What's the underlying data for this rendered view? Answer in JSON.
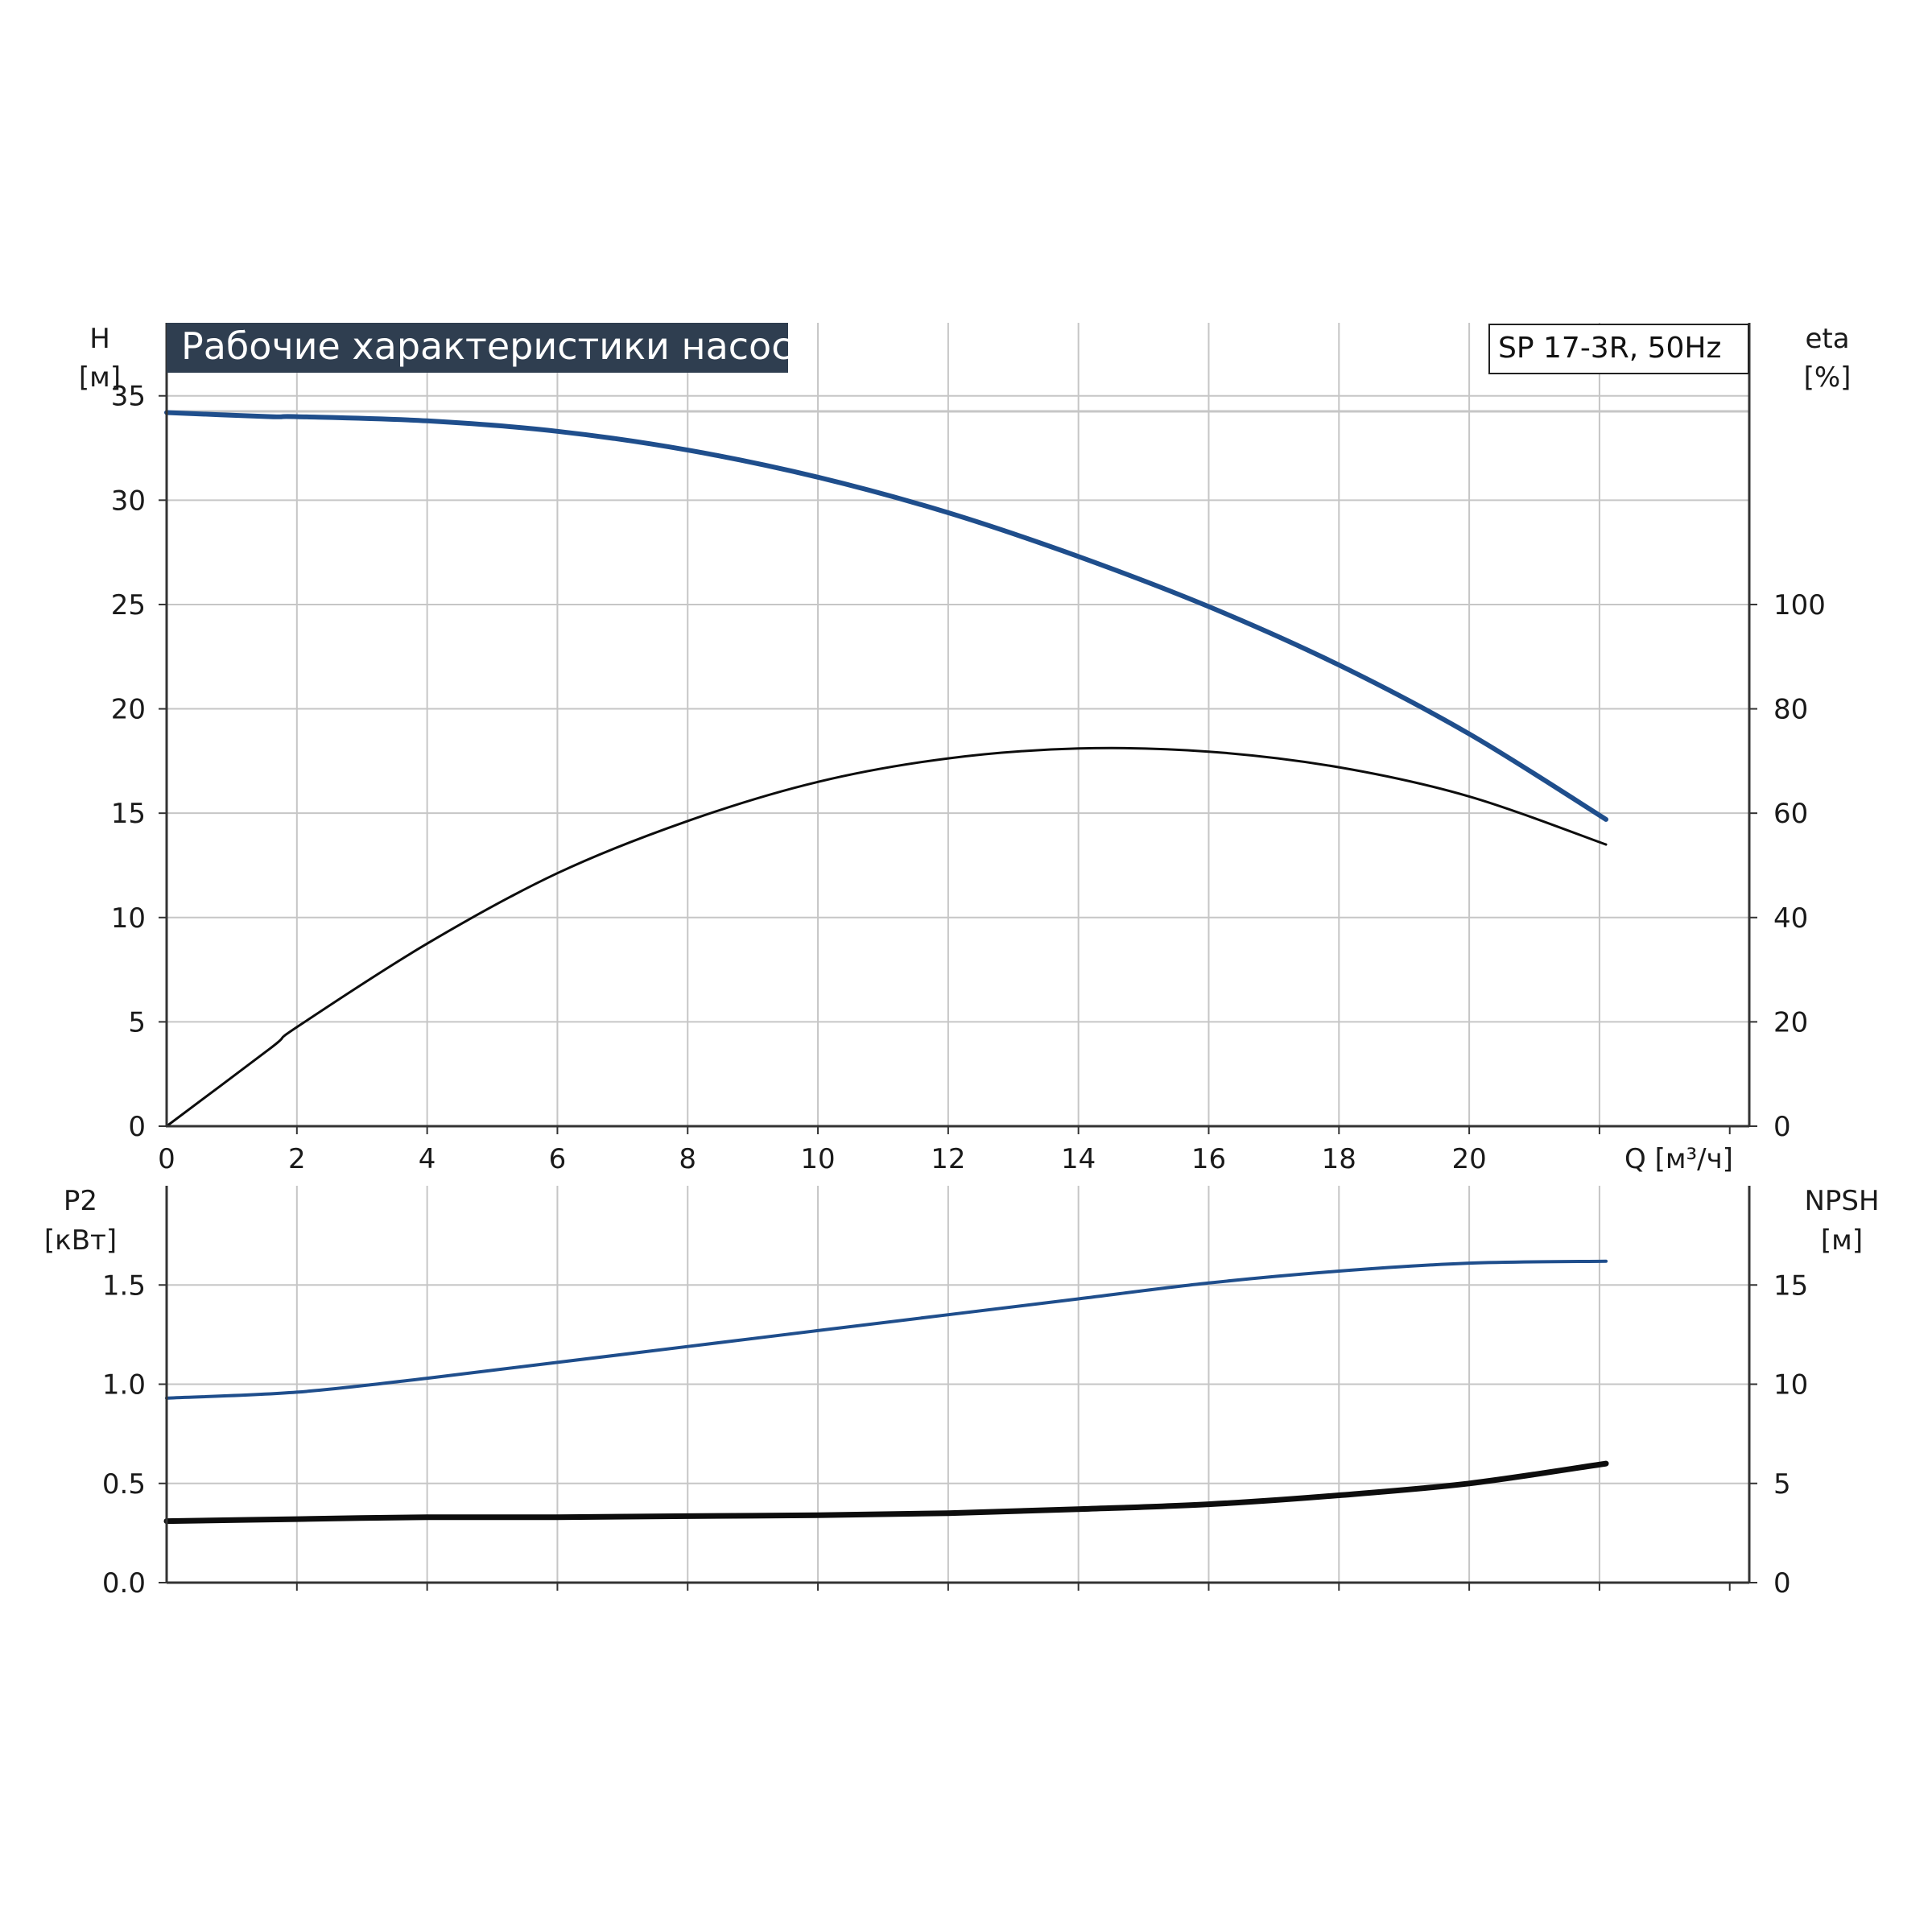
{
  "chart_title": "Рабочие характеристики насоса",
  "model_label": "SP 17-3R, 50Hz",
  "colors": {
    "title_bg": "#2f3e50",
    "blue": "#1f4e8c",
    "black": "#0d0d0d",
    "grid": "#c6c6c6",
    "frame": "#333333"
  },
  "chart_data": [
    {
      "type": "line",
      "panel": "top",
      "xlabel": "Q [м³/ч]",
      "xlim": [
        0,
        24.3
      ],
      "x_ticks": [
        0,
        2,
        4,
        6,
        8,
        10,
        12,
        14,
        16,
        18,
        20
      ],
      "left_axis": {
        "label_line1": "H",
        "label_line2": "[м]",
        "ylim": [
          0,
          38.5
        ],
        "ticks": [
          0,
          5,
          10,
          15,
          20,
          25,
          30,
          35
        ]
      },
      "right_axis": {
        "label_line1": "eta",
        "label_line2": "[%]",
        "ylim": [
          0,
          154
        ],
        "ticks": [
          0,
          20,
          40,
          60,
          80,
          100
        ]
      },
      "grid": true,
      "series": [
        {
          "axis": "left",
          "color": "#1f4e8c",
          "width": 6,
          "x": [
            0,
            1.6,
            2,
            4,
            6,
            8,
            10,
            12,
            14,
            16,
            18,
            20,
            22.1
          ],
          "y": [
            34.2,
            34.0,
            34.0,
            33.8,
            33.3,
            32.4,
            31.1,
            29.4,
            27.3,
            24.9,
            22.1,
            18.8,
            14.7
          ]
        },
        {
          "axis": "right",
          "color": "#0d0d0d",
          "width": 3,
          "x": [
            0,
            1.6,
            2,
            4,
            6,
            8,
            10,
            12,
            14,
            16,
            18,
            20,
            22.1
          ],
          "y": [
            0,
            15,
            19,
            35,
            48.5,
            58.5,
            66,
            70.5,
            72.4,
            71.8,
            68.8,
            63.2,
            54
          ]
        }
      ]
    },
    {
      "type": "line",
      "panel": "bottom",
      "xlim": [
        0,
        24.3
      ],
      "left_axis": {
        "label_line1": "P2",
        "label_line2": "[кВт]",
        "ylim": [
          0,
          2.0
        ],
        "ticks": [
          0.0,
          0.5,
          1.0,
          1.5
        ],
        "tick_labels": [
          "0.0",
          "0.5",
          "1.0",
          "1.5"
        ]
      },
      "right_axis": {
        "label_line1": "NPSH",
        "label_line2": "[м]",
        "ylim": [
          0,
          20
        ],
        "ticks": [
          0,
          5,
          10,
          15
        ]
      },
      "grid": true,
      "series": [
        {
          "axis": "left",
          "color": "#1f4e8c",
          "width": 4,
          "x": [
            0,
            2,
            4,
            6,
            8,
            10,
            12,
            14,
            16,
            18,
            20,
            22.1
          ],
          "y": [
            0.93,
            0.96,
            1.03,
            1.11,
            1.19,
            1.27,
            1.35,
            1.43,
            1.51,
            1.57,
            1.61,
            1.62
          ]
        },
        {
          "axis": "right",
          "color": "#0d0d0d",
          "width": 7,
          "x": [
            0,
            2,
            4,
            6,
            8,
            10,
            12,
            14,
            16,
            18,
            20,
            22.1
          ],
          "y": [
            3.1,
            3.2,
            3.3,
            3.3,
            3.35,
            3.4,
            3.5,
            3.7,
            3.95,
            4.4,
            5.0,
            6.0
          ]
        }
      ]
    }
  ]
}
